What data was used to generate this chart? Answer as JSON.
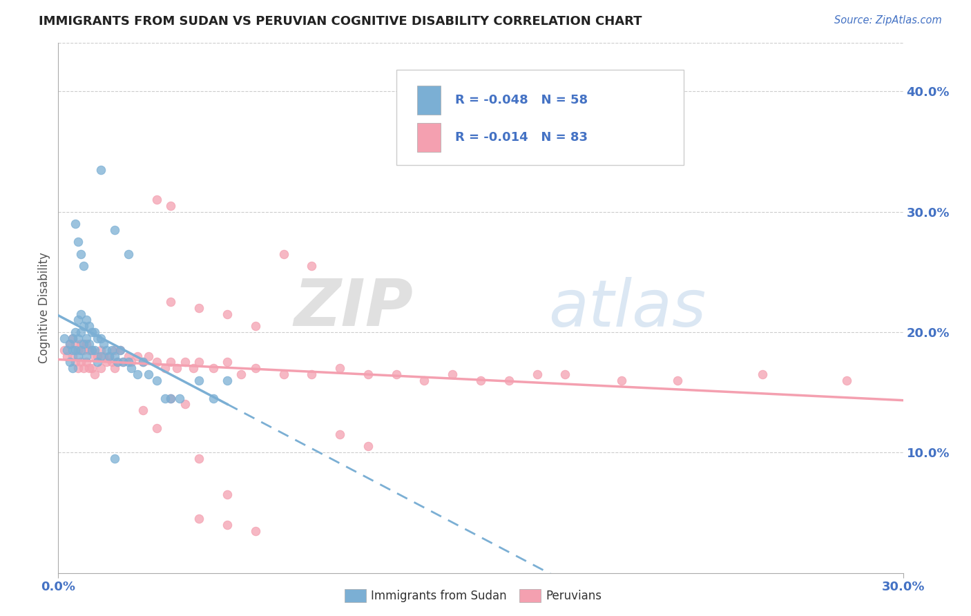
{
  "title": "IMMIGRANTS FROM SUDAN VS PERUVIAN COGNITIVE DISABILITY CORRELATION CHART",
  "source": "Source: ZipAtlas.com",
  "ylabel": "Cognitive Disability",
  "xlim": [
    0.0,
    0.3
  ],
  "ylim": [
    0.0,
    0.44
  ],
  "color_blue": "#7bafd4",
  "color_pink": "#f4a0b0",
  "color_title_blue": "#4472c4",
  "watermark_zip": "ZIP",
  "watermark_atlas": "atlas",
  "legend_r1": "-0.048",
  "legend_n1": "58",
  "legend_r2": "-0.014",
  "legend_n2": "83",
  "blue_x": [
    0.002,
    0.003,
    0.004,
    0.004,
    0.005,
    0.005,
    0.005,
    0.006,
    0.006,
    0.007,
    0.007,
    0.007,
    0.008,
    0.008,
    0.008,
    0.009,
    0.009,
    0.01,
    0.01,
    0.01,
    0.011,
    0.011,
    0.012,
    0.012,
    0.013,
    0.013,
    0.014,
    0.014,
    0.015,
    0.015,
    0.016,
    0.017,
    0.018,
    0.019,
    0.02,
    0.021,
    0.022,
    0.023,
    0.025,
    0.026,
    0.028,
    0.03,
    0.032,
    0.035,
    0.038,
    0.04,
    0.043,
    0.05,
    0.055,
    0.06,
    0.006,
    0.007,
    0.008,
    0.009,
    0.02,
    0.025,
    0.015,
    0.02
  ],
  "blue_y": [
    0.195,
    0.185,
    0.19,
    0.175,
    0.195,
    0.185,
    0.17,
    0.2,
    0.185,
    0.21,
    0.195,
    0.18,
    0.215,
    0.2,
    0.185,
    0.205,
    0.19,
    0.21,
    0.195,
    0.18,
    0.205,
    0.19,
    0.2,
    0.185,
    0.2,
    0.185,
    0.195,
    0.175,
    0.195,
    0.18,
    0.19,
    0.185,
    0.18,
    0.185,
    0.18,
    0.175,
    0.185,
    0.175,
    0.175,
    0.17,
    0.165,
    0.175,
    0.165,
    0.16,
    0.145,
    0.145,
    0.145,
    0.16,
    0.145,
    0.16,
    0.29,
    0.275,
    0.265,
    0.255,
    0.285,
    0.265,
    0.335,
    0.095
  ],
  "pink_x": [
    0.002,
    0.003,
    0.004,
    0.005,
    0.005,
    0.006,
    0.006,
    0.007,
    0.007,
    0.008,
    0.008,
    0.009,
    0.009,
    0.01,
    0.01,
    0.011,
    0.011,
    0.012,
    0.012,
    0.013,
    0.013,
    0.014,
    0.015,
    0.015,
    0.016,
    0.017,
    0.018,
    0.019,
    0.02,
    0.02,
    0.021,
    0.022,
    0.023,
    0.025,
    0.026,
    0.028,
    0.03,
    0.032,
    0.035,
    0.038,
    0.04,
    0.042,
    0.045,
    0.048,
    0.05,
    0.055,
    0.06,
    0.065,
    0.07,
    0.08,
    0.09,
    0.1,
    0.11,
    0.12,
    0.13,
    0.14,
    0.15,
    0.16,
    0.17,
    0.18,
    0.2,
    0.22,
    0.25,
    0.28,
    0.04,
    0.05,
    0.06,
    0.07,
    0.08,
    0.09,
    0.1,
    0.11,
    0.03,
    0.035,
    0.04,
    0.045,
    0.05,
    0.06,
    0.035,
    0.04,
    0.05,
    0.06,
    0.07
  ],
  "pink_y": [
    0.185,
    0.18,
    0.19,
    0.195,
    0.18,
    0.19,
    0.175,
    0.185,
    0.17,
    0.19,
    0.175,
    0.185,
    0.17,
    0.19,
    0.175,
    0.185,
    0.17,
    0.185,
    0.17,
    0.18,
    0.165,
    0.18,
    0.185,
    0.17,
    0.18,
    0.175,
    0.18,
    0.175,
    0.185,
    0.17,
    0.175,
    0.185,
    0.175,
    0.18,
    0.175,
    0.18,
    0.175,
    0.18,
    0.175,
    0.17,
    0.175,
    0.17,
    0.175,
    0.17,
    0.175,
    0.17,
    0.175,
    0.165,
    0.17,
    0.165,
    0.165,
    0.17,
    0.165,
    0.165,
    0.16,
    0.165,
    0.16,
    0.16,
    0.165,
    0.165,
    0.16,
    0.16,
    0.165,
    0.16,
    0.225,
    0.22,
    0.215,
    0.205,
    0.265,
    0.255,
    0.115,
    0.105,
    0.135,
    0.12,
    0.145,
    0.14,
    0.095,
    0.065,
    0.31,
    0.305,
    0.045,
    0.04,
    0.035
  ]
}
